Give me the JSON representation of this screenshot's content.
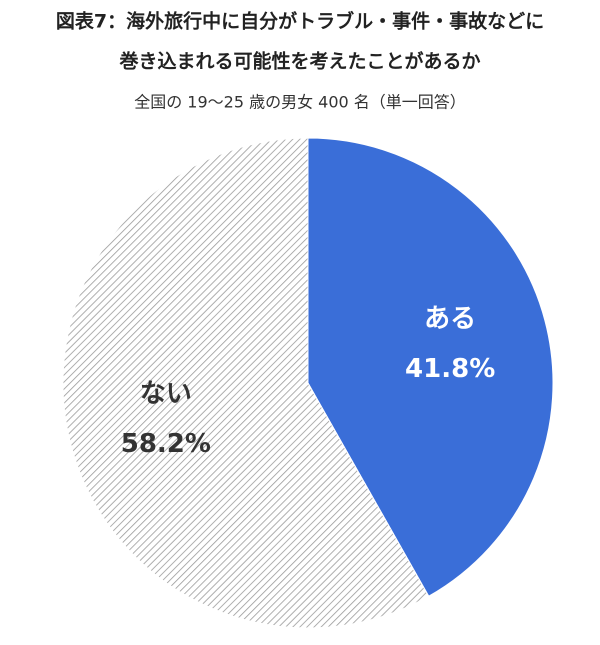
{
  "chart_data": {
    "type": "pie",
    "title": [
      "図表7：海外旅行中に自分がトラブル・事件・事故などに",
      "巻き込まれる可能性を考えたことがあるか"
    ],
    "subtitle": "全国の 19～25 歳の男女 400 名（単一回答）",
    "categories": [
      "ある",
      "ない"
    ],
    "values": [
      41.8,
      58.2
    ],
    "value_labels": [
      "41.8%",
      "58.2%"
    ],
    "colors": [
      "#3a6ed8",
      "#9a9a9a"
    ],
    "hatched": [
      false,
      true
    ]
  }
}
